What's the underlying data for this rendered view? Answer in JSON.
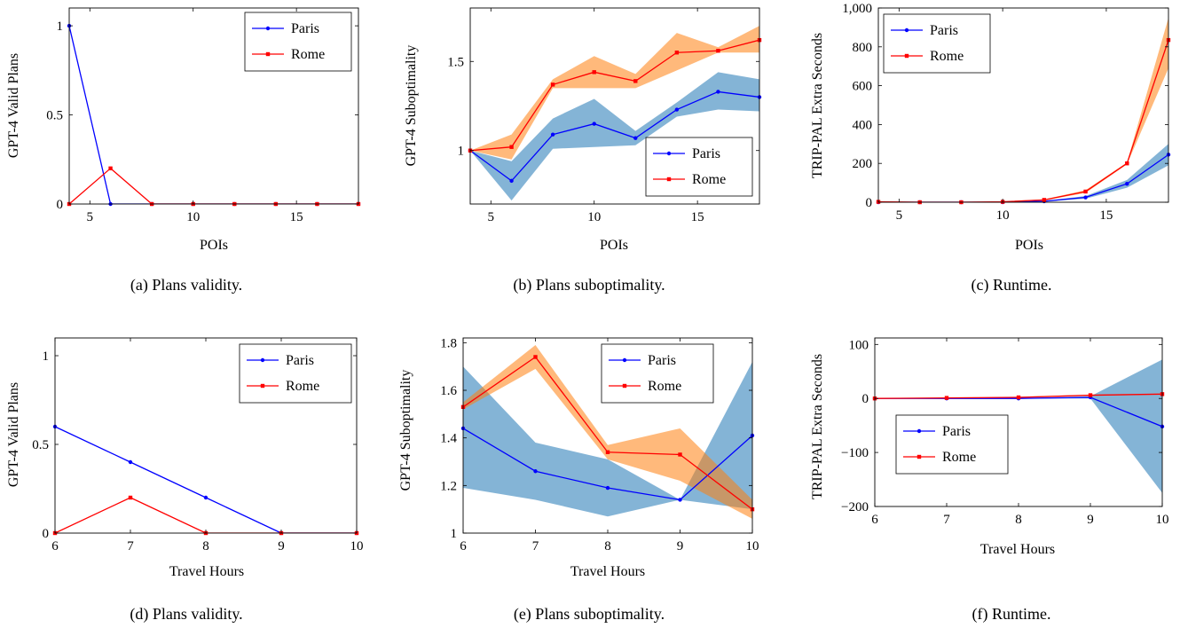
{
  "colors": {
    "paris": "#0000ff",
    "rome": "#ff0000",
    "paris_band": "#1f77b4",
    "rome_band": "#ff7f0e"
  },
  "chart_data": [
    {
      "id": "a",
      "type": "line",
      "caption": "(a) Plans validity.",
      "xlabel": "POIs",
      "ylabel": "GPT-4 Valid Plans",
      "xlim": [
        4,
        18
      ],
      "ylim": [
        0,
        1.1
      ],
      "xticks": [
        5,
        10,
        15
      ],
      "xtick_labels": [
        "5",
        "10",
        "15"
      ],
      "yticks": [
        0,
        0.5,
        1
      ],
      "ytick_labels": [
        "0",
        "0.5",
        "1"
      ],
      "legend": "top-right",
      "grid": false,
      "x": [
        4,
        6,
        8,
        10,
        12,
        14,
        16,
        18
      ],
      "series": [
        {
          "name": "Paris",
          "values": [
            1,
            0,
            0,
            0,
            0,
            0,
            0,
            0
          ]
        },
        {
          "name": "Rome",
          "values": [
            0,
            0.2,
            0,
            0,
            0,
            0,
            0,
            0
          ]
        }
      ]
    },
    {
      "id": "b",
      "type": "line",
      "caption": "(b) Plans suboptimality.",
      "xlabel": "POIs",
      "ylabel": "GPT-4 Suboptimality",
      "xlim": [
        4,
        18
      ],
      "ylim": [
        0.7,
        1.8
      ],
      "xticks": [
        5,
        10,
        15
      ],
      "xtick_labels": [
        "5",
        "10",
        "15"
      ],
      "yticks": [
        1,
        1.5
      ],
      "ytick_labels": [
        "1",
        "1.5"
      ],
      "legend": "bottom-right",
      "grid": false,
      "x": [
        4,
        6,
        8,
        10,
        12,
        14,
        16,
        18
      ],
      "series": [
        {
          "name": "Paris",
          "values": [
            1,
            0.83,
            1.09,
            1.15,
            1.07,
            1.23,
            1.33,
            1.3
          ],
          "band_low": [
            1,
            0.72,
            1.01,
            1.02,
            1.03,
            1.19,
            1.23,
            1.22
          ],
          "band_high": [
            1,
            0.94,
            1.18,
            1.29,
            1.11,
            1.27,
            1.44,
            1.4
          ]
        },
        {
          "name": "Rome",
          "values": [
            1,
            1.02,
            1.37,
            1.44,
            1.39,
            1.55,
            1.56,
            1.62
          ],
          "band_low": [
            1,
            0.95,
            1.35,
            1.35,
            1.35,
            1.45,
            1.55,
            1.55
          ],
          "band_high": [
            1,
            1.09,
            1.4,
            1.53,
            1.43,
            1.66,
            1.58,
            1.7
          ]
        }
      ]
    },
    {
      "id": "c",
      "type": "line",
      "caption": "(c) Runtime.",
      "xlabel": "POIs",
      "ylabel": "TRIP-PAL Extra Seconds",
      "xlim": [
        4,
        18
      ],
      "ylim": [
        0,
        1000
      ],
      "xticks": [
        5,
        10,
        15
      ],
      "xtick_labels": [
        "5",
        "10",
        "15"
      ],
      "yticks": [
        0,
        200,
        400,
        600,
        800,
        1000
      ],
      "ytick_labels": [
        "0",
        "200",
        "400",
        "600",
        "800",
        "1,000"
      ],
      "legend": "top-left",
      "grid": false,
      "x": [
        4,
        6,
        8,
        10,
        12,
        14,
        16,
        18
      ],
      "series": [
        {
          "name": "Paris",
          "values": [
            0,
            0,
            0,
            0,
            5,
            25,
            95,
            245
          ],
          "band_low": [
            0,
            0,
            0,
            0,
            3,
            18,
            75,
            190
          ],
          "band_high": [
            0,
            0,
            0,
            0,
            7,
            32,
            115,
            300
          ]
        },
        {
          "name": "Rome",
          "values": [
            2,
            0,
            0,
            2,
            12,
            55,
            200,
            835
          ],
          "band_low": [
            0,
            0,
            0,
            0,
            9,
            48,
            195,
            690
          ],
          "band_high": [
            5,
            2,
            2,
            4,
            15,
            62,
            205,
            950
          ]
        }
      ]
    },
    {
      "id": "d",
      "type": "line",
      "caption": "(d) Plans validity.",
      "xlabel": "Travel Hours",
      "ylabel": "GPT-4 Valid Plans",
      "xlim": [
        6,
        10
      ],
      "ylim": [
        0,
        1.1
      ],
      "xticks": [
        6,
        7,
        8,
        9,
        10
      ],
      "xtick_labels": [
        "6",
        "7",
        "8",
        "9",
        "10"
      ],
      "yticks": [
        0,
        0.5,
        1
      ],
      "ytick_labels": [
        "0",
        "0.5",
        "1"
      ],
      "legend": "top-right",
      "grid": false,
      "x": [
        6,
        7,
        8,
        9,
        10
      ],
      "series": [
        {
          "name": "Paris",
          "values": [
            0.6,
            0.4,
            0.2,
            0,
            0
          ]
        },
        {
          "name": "Rome",
          "values": [
            0,
            0.2,
            0,
            0,
            0
          ]
        }
      ]
    },
    {
      "id": "e",
      "type": "line",
      "caption": "(e) Plans suboptimality.",
      "xlabel": "Travel Hours",
      "ylabel": "GPT-4 Suboptimality",
      "xlim": [
        6,
        10
      ],
      "ylim": [
        1,
        1.82
      ],
      "xticks": [
        6,
        7,
        8,
        9,
        10
      ],
      "xtick_labels": [
        "6",
        "7",
        "8",
        "9",
        "10"
      ],
      "yticks": [
        1,
        1.2,
        1.4,
        1.6,
        1.8
      ],
      "ytick_labels": [
        "1",
        "1.2",
        "1.4",
        "1.6",
        "1.8"
      ],
      "legend": "top-right",
      "grid": false,
      "x": [
        6,
        7,
        8,
        9,
        10
      ],
      "series": [
        {
          "name": "Paris",
          "values": [
            1.44,
            1.26,
            1.19,
            1.14,
            1.41
          ],
          "band_low": [
            1.19,
            1.14,
            1.07,
            1.14,
            1.1
          ],
          "band_high": [
            1.7,
            1.38,
            1.31,
            1.14,
            1.72
          ]
        },
        {
          "name": "Rome",
          "values": [
            1.53,
            1.74,
            1.34,
            1.33,
            1.1
          ],
          "band_low": [
            1.52,
            1.69,
            1.31,
            1.22,
            1.06
          ],
          "band_high": [
            1.55,
            1.79,
            1.37,
            1.44,
            1.14
          ]
        }
      ]
    },
    {
      "id": "f",
      "type": "line",
      "caption": "(f) Runtime.",
      "xlabel": "Travel Hours",
      "ylabel": "TRIP-PAL Extra Seconds",
      "xlim": [
        6,
        10
      ],
      "ylim": [
        -200,
        112
      ],
      "xticks": [
        6,
        7,
        8,
        9,
        10
      ],
      "xtick_labels": [
        "6",
        "7",
        "8",
        "9",
        "10"
      ],
      "yticks": [
        -200,
        -100,
        0,
        100
      ],
      "ytick_labels": [
        "−200",
        "−100",
        "0",
        "100"
      ],
      "legend": "middle-left",
      "grid": false,
      "x": [
        6,
        7,
        8,
        9,
        10
      ],
      "series": [
        {
          "name": "Paris",
          "values": [
            0,
            0,
            0,
            2,
            -52
          ],
          "band_low": [
            0,
            0,
            0,
            0,
            -175
          ],
          "band_high": [
            0,
            0,
            0,
            4,
            72
          ]
        },
        {
          "name": "Rome",
          "values": [
            0,
            1,
            2,
            6,
            8
          ],
          "band_low": [
            0,
            1,
            1,
            5,
            7
          ],
          "band_high": [
            0,
            1,
            3,
            7,
            9
          ]
        }
      ]
    }
  ]
}
